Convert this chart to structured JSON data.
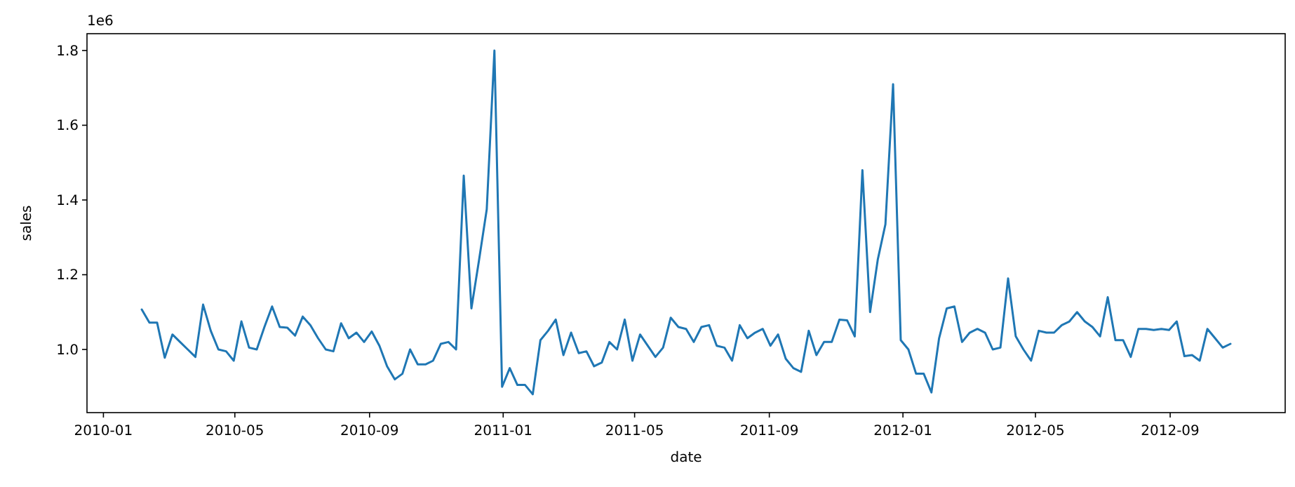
{
  "chart_data": {
    "type": "line",
    "xlabel": "date",
    "ylabel": "sales",
    "annotations": [
      "1e6"
    ],
    "x": [
      "2010-02-05",
      "2010-02-12",
      "2010-02-19",
      "2010-02-26",
      "2010-03-05",
      "2010-03-12",
      "2010-03-19",
      "2010-03-26",
      "2010-04-02",
      "2010-04-09",
      "2010-04-16",
      "2010-04-23",
      "2010-04-30",
      "2010-05-07",
      "2010-05-14",
      "2010-05-21",
      "2010-05-28",
      "2010-06-04",
      "2010-06-11",
      "2010-06-18",
      "2010-06-25",
      "2010-07-02",
      "2010-07-09",
      "2010-07-16",
      "2010-07-23",
      "2010-07-30",
      "2010-08-06",
      "2010-08-13",
      "2010-08-20",
      "2010-08-27",
      "2010-09-03",
      "2010-09-10",
      "2010-09-17",
      "2010-09-24",
      "2010-10-01",
      "2010-10-08",
      "2010-10-15",
      "2010-10-22",
      "2010-10-29",
      "2010-11-05",
      "2010-11-12",
      "2010-11-19",
      "2010-11-26",
      "2010-12-03",
      "2010-12-10",
      "2010-12-17",
      "2010-12-24",
      "2010-12-31",
      "2011-01-07",
      "2011-01-14",
      "2011-01-21",
      "2011-01-28",
      "2011-02-04",
      "2011-02-11",
      "2011-02-18",
      "2011-02-25",
      "2011-03-04",
      "2011-03-11",
      "2011-03-18",
      "2011-03-25",
      "2011-04-01",
      "2011-04-08",
      "2011-04-15",
      "2011-04-22",
      "2011-04-29",
      "2011-05-06",
      "2011-05-13",
      "2011-05-20",
      "2011-05-27",
      "2011-06-03",
      "2011-06-10",
      "2011-06-17",
      "2011-06-24",
      "2011-07-01",
      "2011-07-08",
      "2011-07-15",
      "2011-07-22",
      "2011-07-29",
      "2011-08-05",
      "2011-08-12",
      "2011-08-19",
      "2011-08-26",
      "2011-09-02",
      "2011-09-09",
      "2011-09-16",
      "2011-09-23",
      "2011-09-30",
      "2011-10-07",
      "2011-10-14",
      "2011-10-21",
      "2011-10-28",
      "2011-11-04",
      "2011-11-11",
      "2011-11-18",
      "2011-11-25",
      "2011-12-02",
      "2011-12-09",
      "2011-12-16",
      "2011-12-23",
      "2011-12-30",
      "2012-01-06",
      "2012-01-13",
      "2012-01-20",
      "2012-01-27",
      "2012-02-03",
      "2012-02-10",
      "2012-02-17",
      "2012-02-24",
      "2012-03-02",
      "2012-03-09",
      "2012-03-16",
      "2012-03-23",
      "2012-03-30",
      "2012-04-06",
      "2012-04-13",
      "2012-04-20",
      "2012-04-27",
      "2012-05-04",
      "2012-05-11",
      "2012-05-18",
      "2012-05-25",
      "2012-06-01",
      "2012-06-08",
      "2012-06-15",
      "2012-06-22",
      "2012-06-29",
      "2012-07-06",
      "2012-07-13",
      "2012-07-20",
      "2012-07-27",
      "2012-08-03",
      "2012-08-10",
      "2012-08-17",
      "2012-08-24",
      "2012-08-31",
      "2012-09-07",
      "2012-09-14",
      "2012-09-21",
      "2012-09-28",
      "2012-10-05",
      "2012-10-12",
      "2012-10-19",
      "2012-10-26"
    ],
    "series": [
      {
        "color": "#1f77b4",
        "values": [
          1.107,
          1.072,
          1.072,
          0.978,
          1.04,
          1.02,
          1.0,
          0.98,
          1.12,
          1.05,
          1.0,
          0.995,
          0.97,
          1.075,
          1.005,
          1.0,
          1.06,
          1.115,
          1.06,
          1.058,
          1.037,
          1.088,
          1.065,
          1.03,
          1.0,
          0.995,
          1.07,
          1.03,
          1.045,
          1.02,
          1.048,
          1.01,
          0.955,
          0.92,
          0.935,
          1.0,
          0.96,
          0.96,
          0.97,
          1.015,
          1.02,
          1.0,
          1.465,
          1.11,
          1.24,
          1.375,
          1.8,
          0.9,
          0.95,
          0.905,
          0.905,
          0.88,
          1.025,
          1.05,
          1.08,
          0.985,
          1.045,
          0.99,
          0.995,
          0.955,
          0.965,
          1.02,
          1.0,
          1.08,
          0.97,
          1.04,
          1.01,
          0.98,
          1.005,
          1.085,
          1.06,
          1.055,
          1.02,
          1.06,
          1.065,
          1.01,
          1.005,
          0.97,
          1.065,
          1.03,
          1.045,
          1.055,
          1.01,
          1.04,
          0.975,
          0.95,
          0.94,
          1.05,
          0.985,
          1.02,
          1.02,
          1.08,
          1.078,
          1.035,
          1.48,
          1.1,
          1.24,
          1.335,
          1.71,
          1.025,
          1.0,
          0.935,
          0.935,
          0.885,
          1.03,
          1.11,
          1.115,
          1.02,
          1.045,
          1.055,
          1.045,
          1.0,
          1.005,
          1.19,
          1.035,
          1.0,
          0.97,
          1.05,
          1.045,
          1.045,
          1.065,
          1.075,
          1.1,
          1.075,
          1.06,
          1.035,
          1.14,
          1.025,
          1.025,
          0.98,
          1.055,
          1.055,
          1.052,
          1.055,
          1.052,
          1.075,
          0.982,
          0.985,
          0.97,
          1.055,
          1.03,
          1.005,
          1.015
        ]
      }
    ],
    "xlim": [
      "2009-12-17",
      "2012-12-15"
    ],
    "xticks": [
      "2010-01",
      "2010-05",
      "2010-09",
      "2011-01",
      "2011-05",
      "2011-09",
      "2012-01",
      "2012-05",
      "2012-09"
    ],
    "ylim": [
      0.831,
      1.845
    ],
    "yticks": [
      {
        "value": 1,
        "label": "1.0"
      },
      {
        "value": 1.2,
        "label": "1.2"
      },
      {
        "value": 1.4,
        "label": "1.4"
      },
      {
        "value": 1.6,
        "label": "1.6"
      },
      {
        "value": 1.8,
        "label": "1.8"
      }
    ],
    "grid": false
  }
}
